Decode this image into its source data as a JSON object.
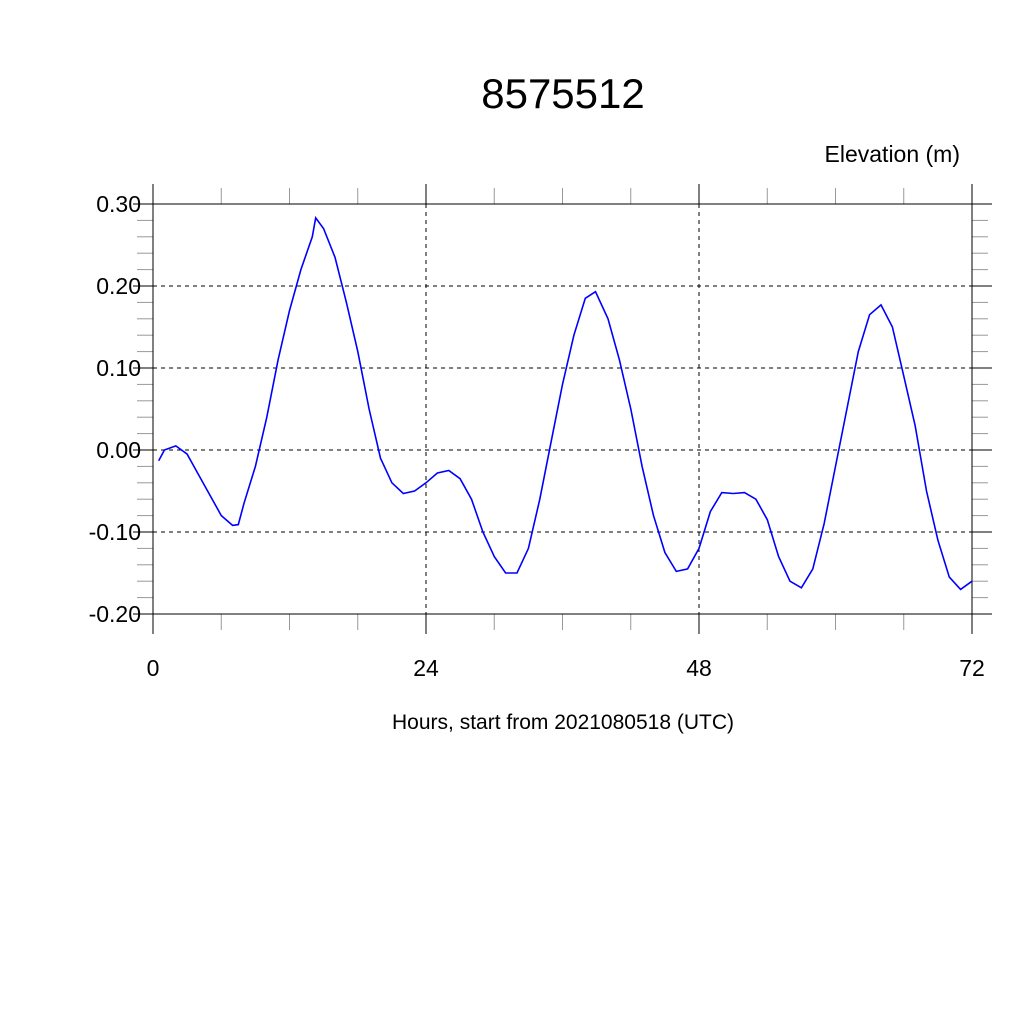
{
  "chart_data": {
    "type": "line",
    "title": "8575512",
    "subtitle": "Elevation (m)",
    "xlabel": "Hours, start from 2021080518 (UTC)",
    "ylabel": "",
    "xlim": [
      0,
      72
    ],
    "ylim": [
      -0.2,
      0.3
    ],
    "x_ticks": [
      0,
      24,
      48,
      72
    ],
    "x_tick_labels": [
      "0",
      "24",
      "48",
      "72"
    ],
    "y_ticks": [
      -0.2,
      -0.1,
      0.0,
      0.1,
      0.2,
      0.3
    ],
    "y_tick_labels": [
      "-0.20",
      "-0.10",
      "0.00",
      "0.10",
      "0.20",
      "0.30"
    ],
    "grid": true,
    "line_color": "#0000ff",
    "series": [
      {
        "x": [
          0.5,
          1,
          2,
          3,
          4,
          5,
          6,
          7,
          7.5,
          8,
          9,
          10,
          11,
          12,
          13,
          14,
          14.3,
          15,
          16,
          17,
          18,
          19,
          20,
          21,
          22,
          23,
          24,
          25,
          26,
          27,
          28,
          29,
          30,
          31,
          32,
          33,
          34,
          35,
          36,
          37,
          38,
          38.9,
          40,
          41,
          42,
          43,
          44,
          45,
          46,
          47,
          48,
          49,
          50,
          51,
          52,
          53,
          54,
          55,
          56,
          57,
          58,
          59,
          60,
          61,
          62,
          63,
          64,
          65,
          66,
          67,
          68,
          69,
          70,
          71,
          72
        ],
        "values": [
          -0.013,
          0.0,
          0.005,
          -0.005,
          -0.03,
          -0.055,
          -0.08,
          -0.092,
          -0.091,
          -0.065,
          -0.02,
          0.04,
          0.11,
          0.17,
          0.22,
          0.26,
          0.283,
          0.27,
          0.235,
          0.18,
          0.12,
          0.05,
          -0.01,
          -0.04,
          -0.053,
          -0.05,
          -0.04,
          -0.028,
          -0.025,
          -0.035,
          -0.06,
          -0.1,
          -0.13,
          -0.15,
          -0.15,
          -0.12,
          -0.06,
          0.01,
          0.08,
          0.14,
          0.185,
          0.193,
          0.16,
          0.11,
          0.05,
          -0.02,
          -0.08,
          -0.125,
          -0.148,
          -0.145,
          -0.12,
          -0.075,
          -0.052,
          -0.053,
          -0.052,
          -0.06,
          -0.085,
          -0.13,
          -0.16,
          -0.168,
          -0.145,
          -0.09,
          -0.02,
          0.05,
          0.12,
          0.165,
          0.177,
          0.15,
          0.09,
          0.03,
          -0.05,
          -0.11,
          -0.155,
          -0.17,
          -0.16
        ]
      }
    ]
  }
}
